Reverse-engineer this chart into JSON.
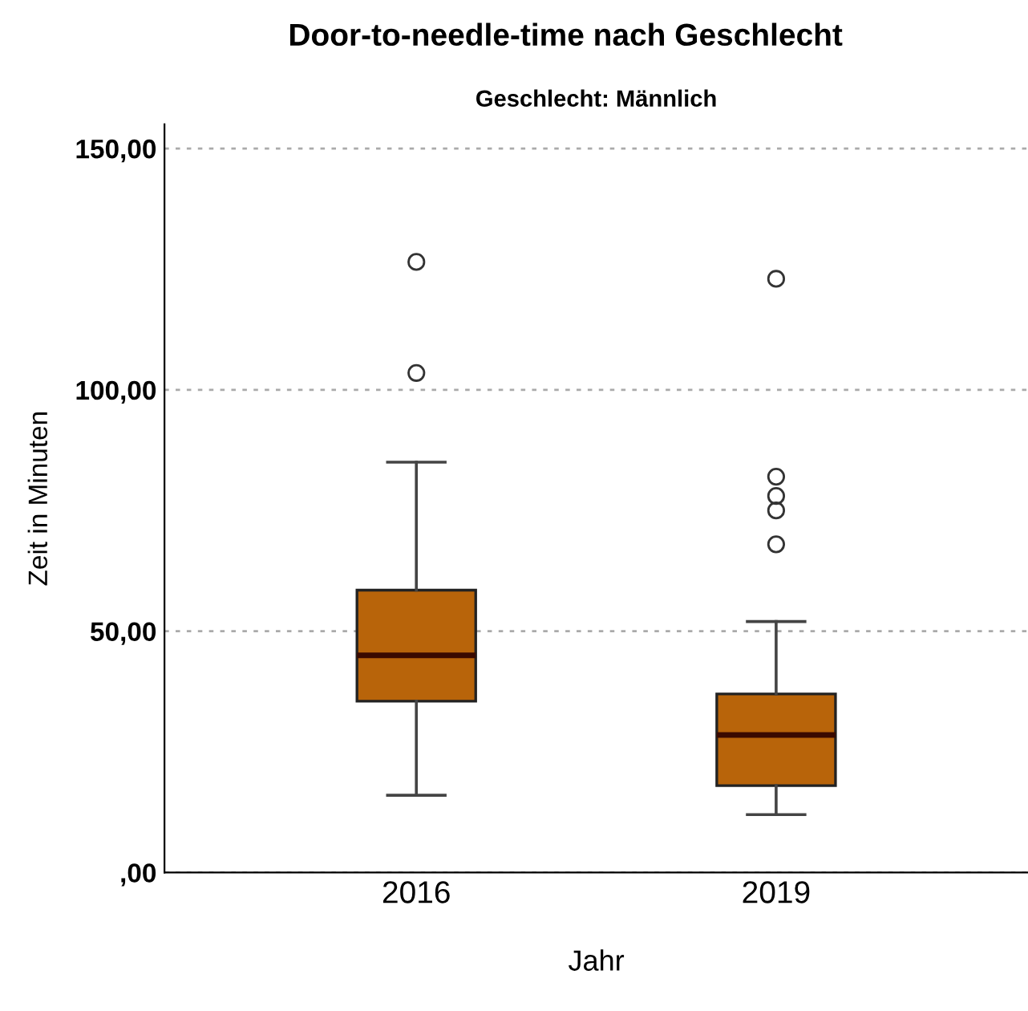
{
  "chart_data": {
    "type": "box",
    "title": "Door-to-needle-time nach Geschlecht",
    "subtitle": "Geschlecht: Männlich",
    "xlabel": "Jahr",
    "ylabel": "Zeit in Minuten",
    "categories": [
      "2016",
      "2019"
    ],
    "series": [
      {
        "color": "#b8640a",
        "boxes": [
          {
            "low": 16,
            "q1": 35.5,
            "median": 45,
            "q3": 58.5,
            "high": 85,
            "outliers": [
              126.5,
              103.5
            ]
          },
          {
            "low": 12,
            "q1": 18,
            "median": 28.5,
            "q3": 37,
            "high": 52,
            "outliers": [
              123,
              82,
              78,
              75,
              68
            ]
          }
        ]
      }
    ],
    "ylim": [
      0,
      155
    ],
    "yticks": [
      {
        "value": 0,
        "label": ",00"
      },
      {
        "value": 50,
        "label": "50,00"
      },
      {
        "value": 100,
        "label": "100,00"
      },
      {
        "value": 150,
        "label": "150,00"
      }
    ],
    "grid": "y"
  }
}
